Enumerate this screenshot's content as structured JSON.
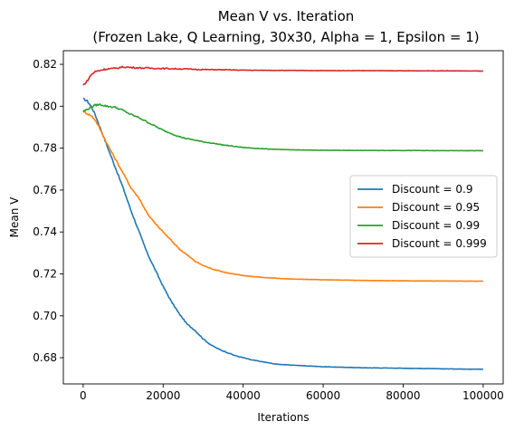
{
  "chart_data": {
    "type": "line",
    "title": "Mean V vs. Iteration",
    "subtitle": "(Frozen Lake, Q Learning, 30x30, Alpha = 1, Epsilon = 1)",
    "xlabel": "Iterations",
    "ylabel": "Mean V",
    "xlim": [
      -4950,
      105000
    ],
    "ylim": [
      0.6675,
      0.8265
    ],
    "xticks": [
      0,
      20000,
      40000,
      60000,
      80000,
      100000
    ],
    "yticks": [
      0.68,
      0.7,
      0.72,
      0.74,
      0.76,
      0.78,
      0.8,
      0.82
    ],
    "grid": false,
    "legend_position": "center-right",
    "series": [
      {
        "name": "Discount = 0.9",
        "color": "#1f77b4",
        "x": [
          0,
          1000,
          2000,
          3000,
          4000,
          5000,
          6000,
          8000,
          10000,
          12000,
          14000,
          16000,
          18000,
          20000,
          22000,
          24000,
          26000,
          28000,
          30000,
          32000,
          34000,
          36000,
          38000,
          40000,
          42000,
          45000,
          48000,
          50000,
          55000,
          60000,
          70000,
          80000,
          90000,
          100000
        ],
        "y": [
          0.8035,
          0.8025,
          0.8,
          0.796,
          0.791,
          0.786,
          0.781,
          0.771,
          0.761,
          0.75,
          0.74,
          0.73,
          0.722,
          0.714,
          0.707,
          0.701,
          0.696,
          0.693,
          0.689,
          0.686,
          0.684,
          0.6825,
          0.681,
          0.68,
          0.679,
          0.678,
          0.677,
          0.6767,
          0.6762,
          0.6757,
          0.6752,
          0.675,
          0.6747,
          0.6745
        ]
      },
      {
        "name": "Discount = 0.95",
        "color": "#ff7f0e",
        "x": [
          0,
          1000,
          2000,
          3000,
          4000,
          5000,
          6000,
          8000,
          10000,
          12000,
          14000,
          16000,
          18000,
          20000,
          22000,
          24000,
          26000,
          28000,
          30000,
          32000,
          34000,
          36000,
          38000,
          40000,
          45000,
          50000,
          55000,
          60000,
          70000,
          80000,
          90000,
          100000
        ],
        "y": [
          0.7975,
          0.7965,
          0.7955,
          0.7935,
          0.79,
          0.786,
          0.782,
          0.775,
          0.768,
          0.761,
          0.756,
          0.749,
          0.744,
          0.74,
          0.736,
          0.732,
          0.729,
          0.726,
          0.724,
          0.7225,
          0.7215,
          0.7205,
          0.7198,
          0.7192,
          0.7183,
          0.7177,
          0.7174,
          0.7172,
          0.7169,
          0.7167,
          0.7166,
          0.7165
        ]
      },
      {
        "name": "Discount = 0.99",
        "color": "#2ca02c",
        "x": [
          0,
          1000,
          2000,
          3000,
          4000,
          5000,
          6000,
          8000,
          10000,
          12000,
          14000,
          16000,
          18000,
          20000,
          22000,
          24000,
          26000,
          28000,
          30000,
          32000,
          35000,
          38000,
          40000,
          45000,
          50000,
          55000,
          60000,
          70000,
          80000,
          90000,
          100000
        ],
        "y": [
          0.7975,
          0.7985,
          0.7995,
          0.8005,
          0.8008,
          0.8005,
          0.8,
          0.7995,
          0.798,
          0.796,
          0.7945,
          0.7925,
          0.7905,
          0.7885,
          0.787,
          0.7855,
          0.7845,
          0.7838,
          0.783,
          0.7825,
          0.7815,
          0.7808,
          0.7803,
          0.7797,
          0.7793,
          0.7791,
          0.779,
          0.7789,
          0.7789,
          0.7788,
          0.7788
        ]
      },
      {
        "name": "Discount = 0.999",
        "color": "#d62728",
        "x": [
          0,
          1000,
          2000,
          3000,
          4000,
          5000,
          6000,
          8000,
          10000,
          12000,
          14000,
          16000,
          18000,
          20000,
          25000,
          30000,
          35000,
          40000,
          50000,
          60000,
          70000,
          80000,
          90000,
          100000
        ],
        "y": [
          0.81,
          0.812,
          0.815,
          0.8165,
          0.817,
          0.8175,
          0.8178,
          0.818,
          0.8188,
          0.8185,
          0.8183,
          0.8182,
          0.8181,
          0.818,
          0.8178,
          0.8175,
          0.8174,
          0.8172,
          0.8171,
          0.817,
          0.817,
          0.8169,
          0.8169,
          0.8168
        ]
      }
    ]
  }
}
